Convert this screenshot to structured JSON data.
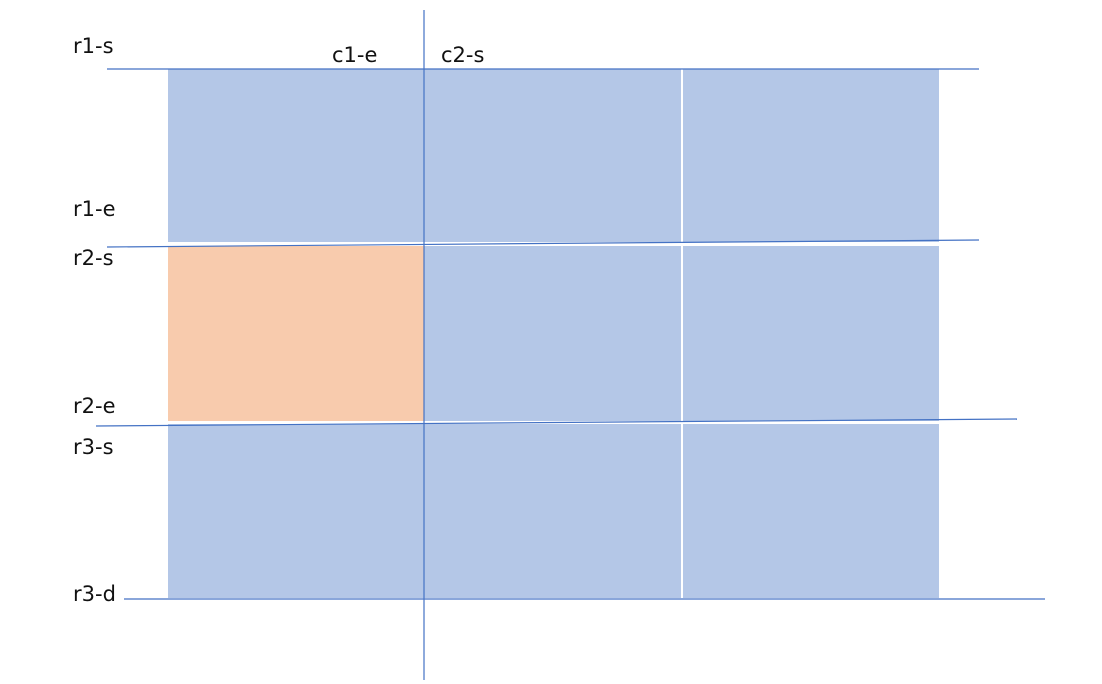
{
  "colors": {
    "cell": "#b4c7e7",
    "highlight": "#f8cbad",
    "line": "#4472c4",
    "separator": "#ffffff",
    "text": "#111111"
  },
  "grid": {
    "rows": 3,
    "columns": 3,
    "highlighted_cell": {
      "row": 2,
      "column": 1
    }
  },
  "labels": {
    "r1_s": "r1-s",
    "r1_e": "r1-e",
    "r2_s": "r2-s",
    "r2_e": "r2-e",
    "r3_s": "r3-s",
    "r3_d": "r3-d",
    "c1_e": "c1-e",
    "c2_s": "c2-s"
  }
}
